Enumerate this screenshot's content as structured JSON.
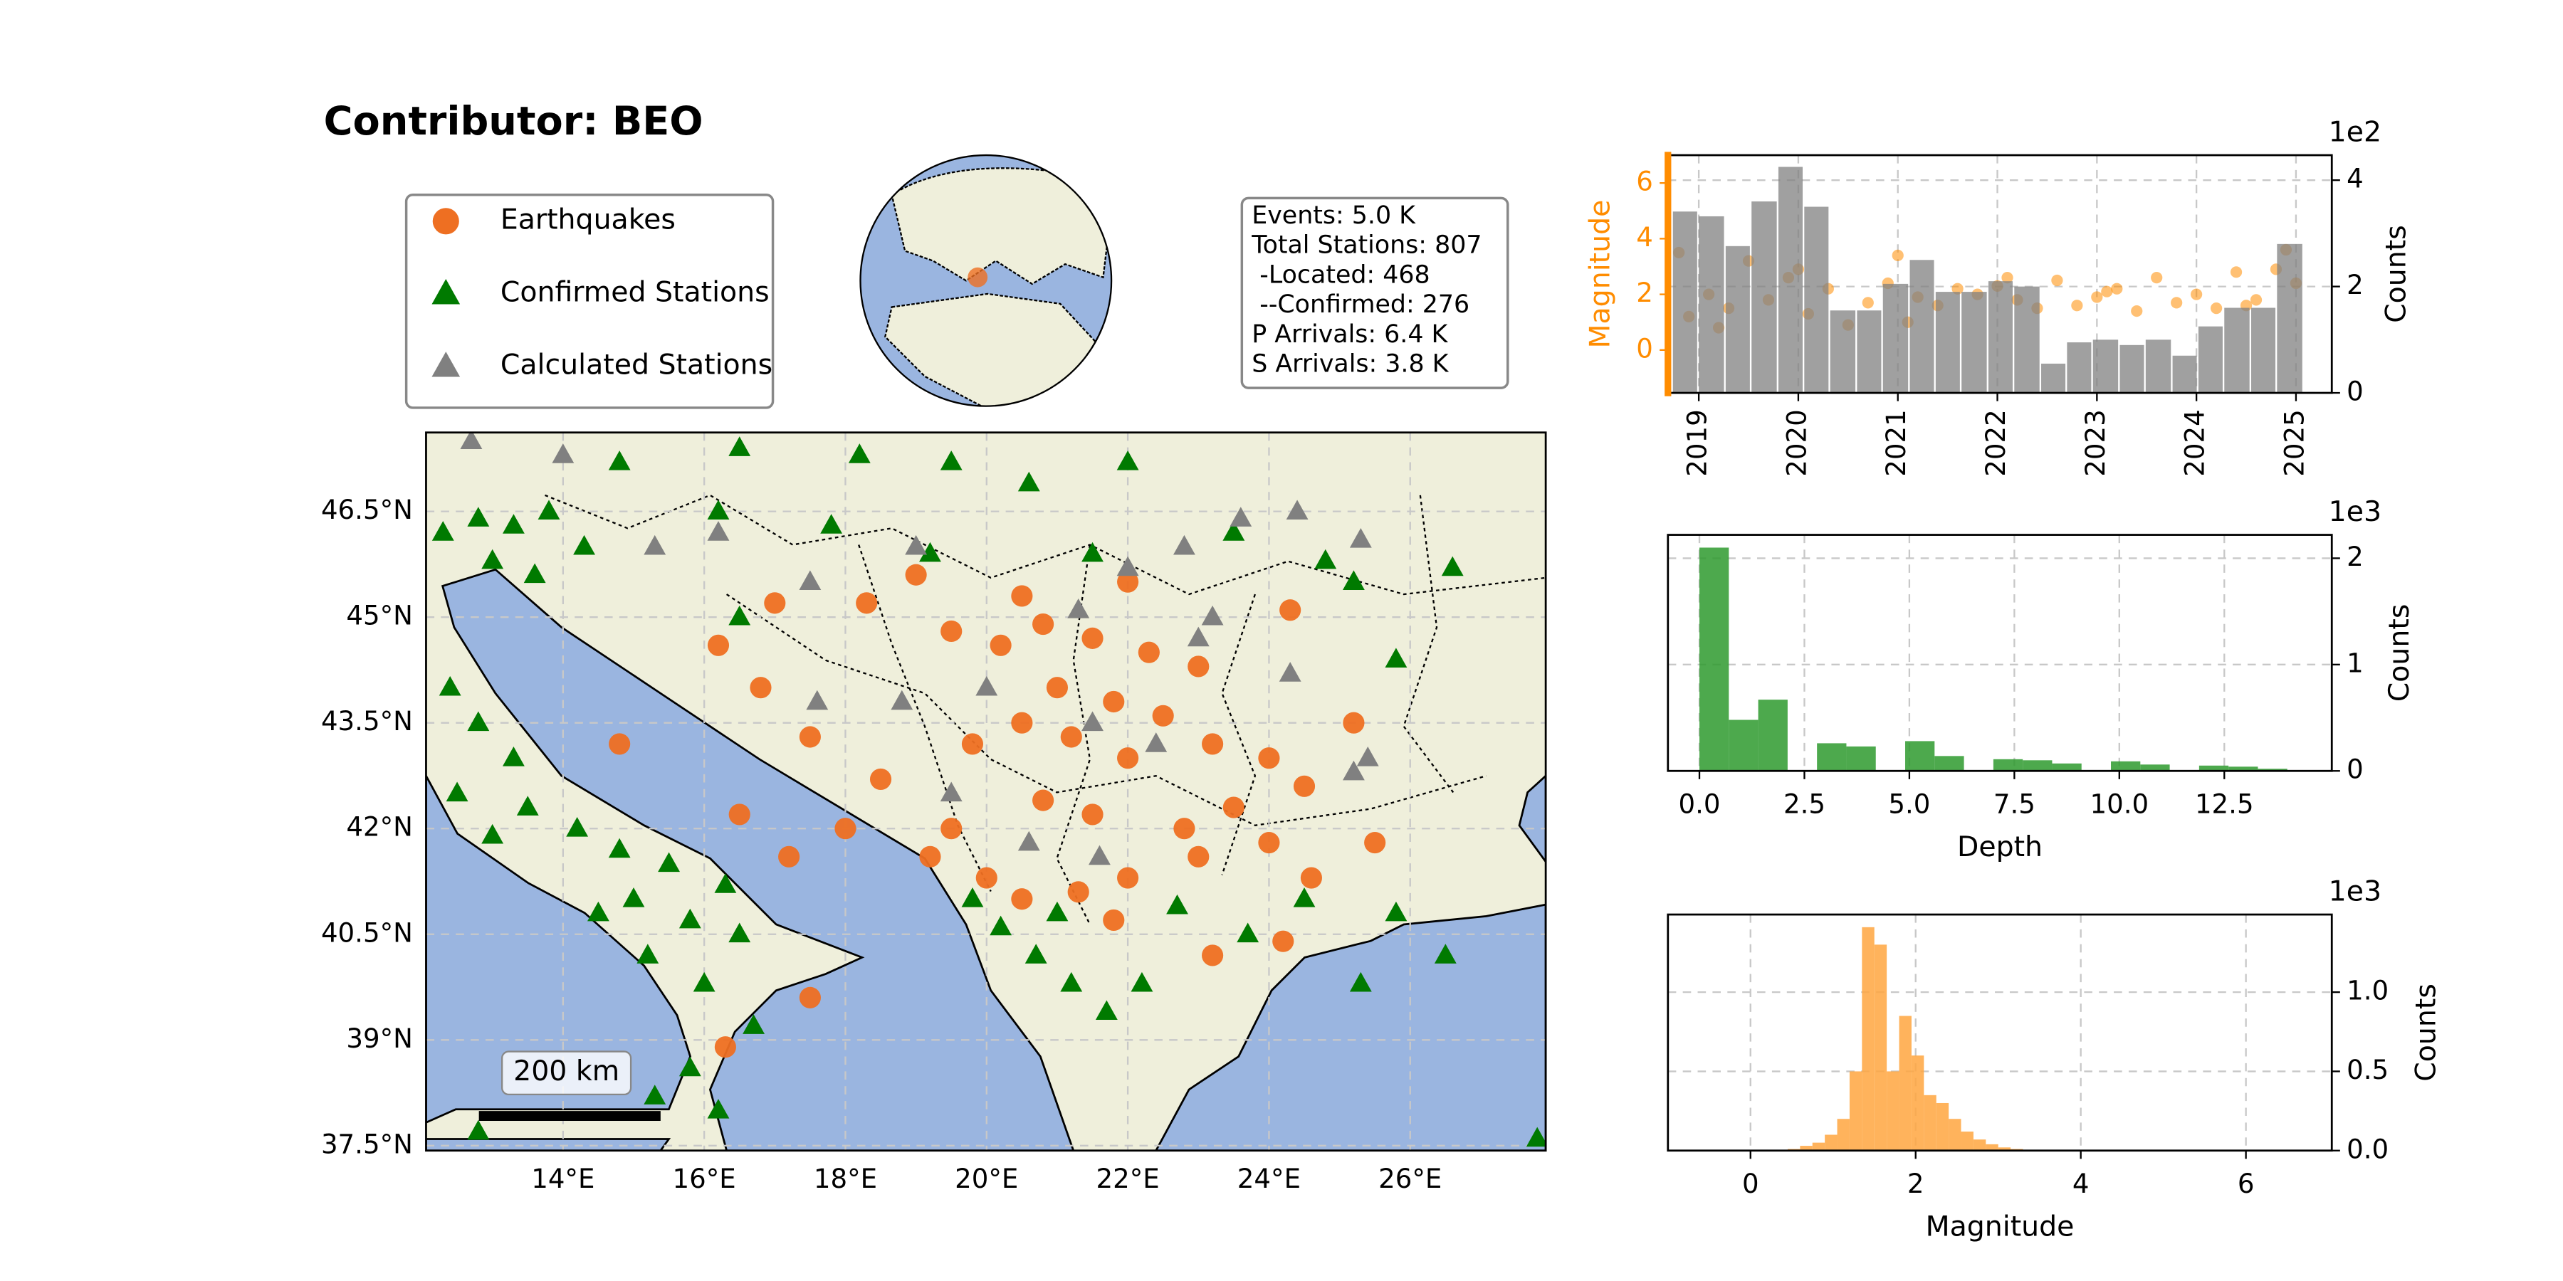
{
  "title": "Contributor: BEO",
  "stats": [
    "Events: 5.0 K",
    "Total Stations: 807",
    " -Located: 468",
    " --Confirmed: 276",
    "P Arrivals: 6.4 K",
    "S Arrivals: 3.8 K"
  ],
  "chart_data": [
    {
      "type": "map",
      "xlim": [
        12.06,
        27.92
      ],
      "ylim": [
        37.43,
        47.62
      ],
      "xticks": [
        {
          "value": 14,
          "label": "14°E"
        },
        {
          "value": 16,
          "label": "16°E"
        },
        {
          "value": 18,
          "label": "18°E"
        },
        {
          "value": 20,
          "label": "20°E"
        },
        {
          "value": 22,
          "label": "22°E"
        },
        {
          "value": 24,
          "label": "24°E"
        },
        {
          "value": 26,
          "label": "26°E"
        }
      ],
      "yticks": [
        {
          "value": 37.5,
          "label": "37.5°N"
        },
        {
          "value": 39,
          "label": "39°N"
        },
        {
          "value": 40.5,
          "label": "40.5°N"
        },
        {
          "value": 42,
          "label": "42°N"
        },
        {
          "value": 43.5,
          "label": "43.5°N"
        },
        {
          "value": 45,
          "label": "45°N"
        },
        {
          "value": 46.5,
          "label": "46.5°N"
        }
      ],
      "grid": true,
      "scale_bar": "200 km",
      "series": [
        {
          "name": "Earthquakes",
          "color": "#ee6f22",
          "marker": "circle",
          "x": [
            19.5,
            20.2,
            20.8,
            21.5,
            22.3,
            23.0,
            21.0,
            21.8,
            22.5,
            20.5,
            19.8,
            21.2,
            22.0,
            23.2,
            24.0,
            24.5,
            23.5,
            22.8,
            21.5,
            20.8,
            19.5,
            19.2,
            20.0,
            20.5,
            21.3,
            22.0,
            23.0,
            24.0,
            24.6,
            18.5,
            17.5,
            16.8,
            16.2,
            17.0,
            18.3,
            19.0,
            20.5,
            22.0,
            24.3,
            14.8,
            16.5,
            17.2,
            17.5,
            16.3,
            23.2,
            24.2,
            25.2,
            25.5,
            18.0,
            21.8
          ],
          "y": [
            44.8,
            44.6,
            44.9,
            44.7,
            44.5,
            44.3,
            44.0,
            43.8,
            43.6,
            43.5,
            43.2,
            43.3,
            43.0,
            43.2,
            43.0,
            42.6,
            42.3,
            42.0,
            42.2,
            42.4,
            42.0,
            41.6,
            41.3,
            41.0,
            41.1,
            41.3,
            41.6,
            41.8,
            41.3,
            42.7,
            43.3,
            44.0,
            44.6,
            45.2,
            45.2,
            45.6,
            45.3,
            45.5,
            45.1,
            43.2,
            42.2,
            41.6,
            39.6,
            38.9,
            40.2,
            40.4,
            43.5,
            41.8,
            42.0,
            40.7
          ]
        },
        {
          "name": "Confirmed Stations",
          "color": "#007a00",
          "marker": "triangle",
          "x": [
            12.3,
            12.8,
            13.3,
            13.8,
            14.3,
            13.0,
            13.6,
            14.8,
            16.5,
            18.2,
            19.5,
            20.6,
            22.0,
            12.4,
            12.8,
            13.3,
            12.5,
            13.5,
            14.2,
            13.0,
            14.8,
            15.5,
            16.3,
            15.0,
            15.8,
            16.5,
            14.5,
            15.2,
            16.0,
            16.7,
            15.8,
            16.2,
            15.3,
            12.8,
            19.8,
            20.2,
            20.7,
            21.2,
            21.7,
            22.2,
            21.0,
            22.7,
            23.7,
            24.5,
            25.8,
            25.3,
            26.5,
            27.8,
            26.6,
            25.8,
            25.2,
            24.8,
            23.5,
            21.5,
            19.2,
            17.8,
            16.2,
            16.5
          ],
          "y": [
            46.2,
            46.4,
            46.3,
            46.5,
            46.0,
            45.8,
            45.6,
            47.2,
            47.4,
            47.3,
            47.2,
            46.9,
            47.2,
            44.0,
            43.5,
            43.0,
            42.5,
            42.3,
            42.0,
            41.9,
            41.7,
            41.5,
            41.2,
            41.0,
            40.7,
            40.5,
            40.8,
            40.2,
            39.8,
            39.2,
            38.6,
            38.0,
            38.2,
            37.7,
            41.0,
            40.6,
            40.2,
            39.8,
            39.4,
            39.8,
            40.8,
            40.9,
            40.5,
            41.0,
            40.8,
            39.8,
            40.2,
            37.6,
            45.7,
            44.4,
            45.5,
            45.8,
            46.2,
            45.9,
            45.9,
            46.3,
            46.5,
            45.0
          ]
        },
        {
          "name": "Calculated Stations",
          "color": "#808080",
          "marker": "triangle",
          "x": [
            12.7,
            14.0,
            16.2,
            15.3,
            17.5,
            19.0,
            22.8,
            23.6,
            24.4,
            25.3,
            23.2,
            22.0,
            21.3,
            20.0,
            21.5,
            22.4,
            24.3,
            25.2,
            25.4,
            19.5,
            20.6,
            21.6,
            18.8,
            17.6,
            23.0
          ],
          "y": [
            47.5,
            47.3,
            46.2,
            46.0,
            45.5,
            46.0,
            46.0,
            46.4,
            46.5,
            46.1,
            45.0,
            45.7,
            45.1,
            44.0,
            43.5,
            43.2,
            44.2,
            42.8,
            43.0,
            42.5,
            41.8,
            41.6,
            43.8,
            43.8,
            44.7
          ]
        }
      ]
    },
    {
      "type": "combo",
      "xlim": [
        2018.69,
        2025.36
      ],
      "xticks": [
        2019,
        2020,
        2021,
        2022,
        2023,
        2024,
        2025
      ],
      "ylim": [
        -1.54,
        7.0
      ],
      "yticks": [
        0,
        2,
        4,
        6
      ],
      "ylabel": "Magnitude",
      "ycolor": "#ff8c00",
      "y2lim": [
        0,
        4.47
      ],
      "y2ticks": [
        0,
        2,
        4
      ],
      "y2label": "Counts",
      "y2_offset_label": "1e2",
      "grid": true,
      "series": [
        {
          "type": "scatter",
          "color": "#ff8c00",
          "x": [
            2018.8,
            2018.9,
            2019.1,
            2019.3,
            2019.5,
            2019.7,
            2019.9,
            2020.1,
            2020.3,
            2020.5,
            2020.7,
            2020.9,
            2021.0,
            2021.2,
            2021.4,
            2021.6,
            2021.8,
            2022.0,
            2022.2,
            2022.4,
            2022.6,
            2022.8,
            2023.0,
            2023.2,
            2023.4,
            2023.6,
            2023.8,
            2024.0,
            2024.2,
            2024.4,
            2024.6,
            2024.8,
            2024.9,
            2025.0,
            2019.2,
            2020.0,
            2021.1,
            2022.1,
            2023.1,
            2024.5
          ],
          "values": [
            3.5,
            1.2,
            2.0,
            1.5,
            3.2,
            1.8,
            2.6,
            1.3,
            2.2,
            0.9,
            1.7,
            2.4,
            3.4,
            1.9,
            1.6,
            2.2,
            2.0,
            2.3,
            1.8,
            1.5,
            2.5,
            1.6,
            1.9,
            2.2,
            1.4,
            2.6,
            1.7,
            2.0,
            1.5,
            2.8,
            1.8,
            2.9,
            3.6,
            2.4,
            0.8,
            2.9,
            1.0,
            2.6,
            2.1,
            1.6
          ]
        },
        {
          "type": "histogram",
          "axis": "y2",
          "color": "#808080",
          "bins": [
            2018.74,
            2019.0,
            2019.27,
            2019.53,
            2019.8,
            2020.06,
            2020.32,
            2020.59,
            2020.85,
            2021.12,
            2021.38,
            2021.64,
            2021.91,
            2022.17,
            2022.44,
            2022.7,
            2022.96,
            2023.23,
            2023.49,
            2023.76,
            2024.02,
            2024.28,
            2024.55,
            2024.81,
            2025.08
          ],
          "values": [
            3.41,
            3.32,
            2.76,
            3.6,
            4.25,
            3.5,
            1.55,
            1.55,
            2.05,
            2.5,
            1.9,
            1.9,
            2.1,
            2.0,
            0.55,
            0.95,
            1.0,
            0.9,
            1.0,
            0.7,
            1.25,
            1.6,
            1.6,
            2.8
          ]
        }
      ]
    },
    {
      "type": "histogram",
      "color": "#2e9a2e",
      "xlim": [
        -0.75,
        15.06
      ],
      "xticks": [
        {
          "value": 0,
          "label": "0.0"
        },
        {
          "value": 2.5,
          "label": "2.5"
        },
        {
          "value": 5,
          "label": "5.0"
        },
        {
          "value": 7.5,
          "label": "7.5"
        },
        {
          "value": 10,
          "label": "10.0"
        },
        {
          "value": 12.5,
          "label": "12.5"
        }
      ],
      "ylim": [
        0,
        2.22
      ],
      "yticks": [
        0,
        1,
        2
      ],
      "xlabel": "Depth",
      "ylabel": "Counts",
      "y_offset_label": "1e3",
      "grid": true,
      "bins": [
        0,
        0.7,
        1.4,
        2.1,
        2.8,
        3.5,
        4.2,
        4.9,
        5.6,
        6.3,
        7.0,
        7.7,
        8.4,
        9.1,
        9.8,
        10.5,
        11.2,
        11.9,
        12.6,
        13.3,
        14.0
      ],
      "values": [
        2.1,
        0.48,
        0.67,
        0,
        0.26,
        0.23,
        0,
        0.28,
        0.14,
        0,
        0.11,
        0.1,
        0.07,
        0,
        0.09,
        0.06,
        0,
        0.05,
        0.04,
        0.02
      ]
    },
    {
      "type": "histogram",
      "color": "#ffa640",
      "xlim": [
        -1.0,
        7.04
      ],
      "xticks": [
        0,
        2,
        4,
        6
      ],
      "ylim": [
        0,
        1.49
      ],
      "yticks": [
        {
          "value": 0,
          "label": "0.0"
        },
        {
          "value": 0.5,
          "label": "0.5"
        },
        {
          "value": 1,
          "label": "1.0"
        }
      ],
      "xlabel": "Magnitude",
      "ylabel": "Counts",
      "y_offset_label": "1e3",
      "grid": true,
      "bins": [
        0.3,
        0.45,
        0.6,
        0.75,
        0.9,
        1.05,
        1.2,
        1.35,
        1.5,
        1.65,
        1.8,
        1.95,
        2.1,
        2.25,
        2.4,
        2.55,
        2.7,
        2.85,
        3.0,
        3.15,
        3.3
      ],
      "values": [
        0.005,
        0.01,
        0.03,
        0.05,
        0.1,
        0.2,
        0.5,
        1.41,
        1.3,
        0.5,
        0.85,
        0.6,
        0.35,
        0.3,
        0.2,
        0.12,
        0.07,
        0.04,
        0.02,
        0.01
      ]
    }
  ]
}
